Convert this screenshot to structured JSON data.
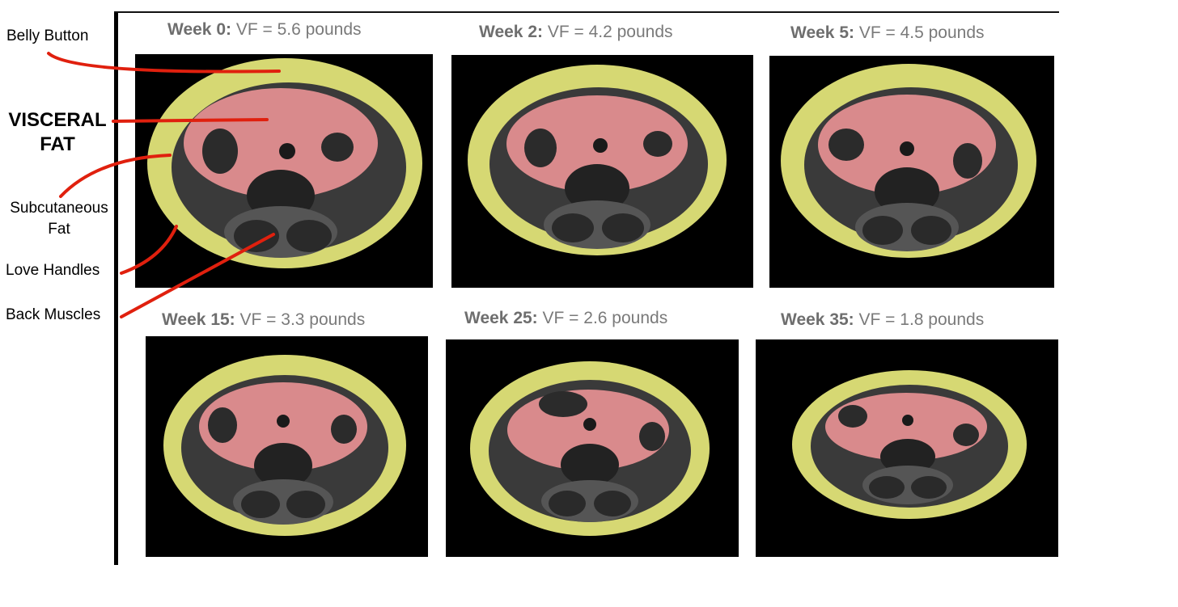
{
  "annotations": {
    "belly_button": "Belly Button",
    "visceral_line1": "VISCERAL",
    "visceral_line2": "FAT",
    "subcutaneous_line1": "Subcutaneous",
    "subcutaneous_line2": "Fat",
    "love_handles": "Love Handles",
    "back_muscles": "Back Muscles"
  },
  "panels": [
    {
      "week": "Week 0:",
      "vf": " VF = 5.6 pounds"
    },
    {
      "week": "Week 2:",
      "vf": " VF = 4.2 pounds"
    },
    {
      "week": "Week 5:",
      "vf": " VF = 4.5 pounds"
    },
    {
      "week": "Week 15:",
      "vf": " VF = 3.3 pounds"
    },
    {
      "week": "Week 25:",
      "vf": " VF = 2.6 pounds"
    },
    {
      "week": "Week 35:",
      "vf": " VF = 1.8 pounds"
    }
  ],
  "colors": {
    "subcutaneous_fat": "#d6d873",
    "visceral_fat": "#d98a8c",
    "tissue": "#3a3a3a",
    "annotation_arrow": "#e0200e"
  }
}
